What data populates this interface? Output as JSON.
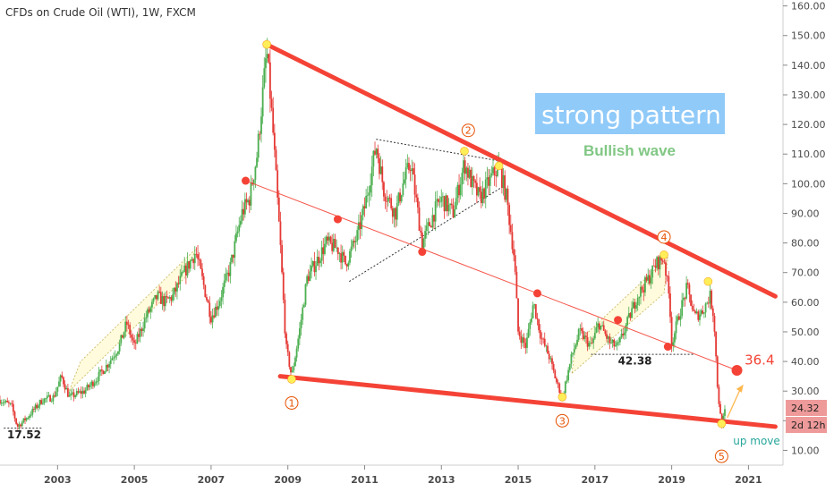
{
  "chart_data": {
    "type": "line",
    "title": "CFDs on Crude Oil (WTI), 1W, FXCM",
    "y_ticks": [
      "160.00",
      "150.00",
      "140.00",
      "130.00",
      "120.00",
      "110.00",
      "100.00",
      "90.00",
      "80.00",
      "70.00",
      "60.00",
      "50.00",
      "40.00",
      "30.00",
      "20.00",
      "10.00"
    ],
    "x_ticks": [
      "2003",
      "2005",
      "2007",
      "2009",
      "2011",
      "2013",
      "2015",
      "2017",
      "2019",
      "2021"
    ],
    "ylim": [
      5,
      162
    ],
    "xlim": [
      2001.5,
      2021.9
    ],
    "grid": false,
    "price_path": [
      [
        2001.5,
        27
      ],
      [
        2001.8,
        25
      ],
      [
        2001.95,
        18
      ],
      [
        2002.2,
        21
      ],
      [
        2002.6,
        27
      ],
      [
        2002.9,
        28
      ],
      [
        2003.1,
        35
      ],
      [
        2003.3,
        28
      ],
      [
        2003.7,
        30
      ],
      [
        2004.0,
        34
      ],
      [
        2004.3,
        39
      ],
      [
        2004.6,
        45
      ],
      [
        2004.8,
        53
      ],
      [
        2005.0,
        45
      ],
      [
        2005.3,
        55
      ],
      [
        2005.6,
        62
      ],
      [
        2005.8,
        60
      ],
      [
        2006.0,
        62
      ],
      [
        2006.3,
        70
      ],
      [
        2006.6,
        77
      ],
      [
        2006.8,
        66
      ],
      [
        2007.0,
        55
      ],
      [
        2007.2,
        60
      ],
      [
        2007.5,
        72
      ],
      [
        2007.8,
        90
      ],
      [
        2008.0,
        95
      ],
      [
        2008.2,
        110
      ],
      [
        2008.45,
        145
      ],
      [
        2008.6,
        120
      ],
      [
        2008.8,
        80
      ],
      [
        2008.95,
        45
      ],
      [
        2009.1,
        35
      ],
      [
        2009.3,
        50
      ],
      [
        2009.5,
        68
      ],
      [
        2009.8,
        75
      ],
      [
        2010.0,
        80
      ],
      [
        2010.3,
        78
      ],
      [
        2010.5,
        73
      ],
      [
        2010.8,
        82
      ],
      [
        2011.0,
        92
      ],
      [
        2011.3,
        113
      ],
      [
        2011.5,
        98
      ],
      [
        2011.8,
        90
      ],
      [
        2012.0,
        100
      ],
      [
        2012.2,
        107
      ],
      [
        2012.5,
        80
      ],
      [
        2012.8,
        90
      ],
      [
        2013.0,
        95
      ],
      [
        2013.3,
        90
      ],
      [
        2013.6,
        107
      ],
      [
        2013.8,
        100
      ],
      [
        2014.0,
        95
      ],
      [
        2014.3,
        102
      ],
      [
        2014.5,
        106
      ],
      [
        2014.7,
        95
      ],
      [
        2014.9,
        75
      ],
      [
        2015.0,
        50
      ],
      [
        2015.2,
        45
      ],
      [
        2015.4,
        60
      ],
      [
        2015.6,
        48
      ],
      [
        2015.8,
        42
      ],
      [
        2016.0,
        33
      ],
      [
        2016.15,
        28
      ],
      [
        2016.4,
        42
      ],
      [
        2016.6,
        50
      ],
      [
        2016.9,
        45
      ],
      [
        2017.1,
        53
      ],
      [
        2017.4,
        46
      ],
      [
        2017.6,
        45
      ],
      [
        2017.9,
        55
      ],
      [
        2018.1,
        62
      ],
      [
        2018.4,
        68
      ],
      [
        2018.6,
        73
      ],
      [
        2018.8,
        75
      ],
      [
        2018.95,
        60
      ],
      [
        2019.0,
        46
      ],
      [
        2019.2,
        56
      ],
      [
        2019.4,
        65
      ],
      [
        2019.6,
        55
      ],
      [
        2019.8,
        57
      ],
      [
        2020.0,
        62
      ],
      [
        2020.1,
        55
      ],
      [
        2020.2,
        30
      ],
      [
        2020.3,
        18
      ],
      [
        2020.4,
        24
      ]
    ],
    "trendlines": [
      {
        "name": "upper",
        "points": [
          [
            2008.45,
            147
          ],
          [
            2021.7,
            62
          ]
        ]
      },
      {
        "name": "lower",
        "points": [
          [
            2008.8,
            35
          ],
          [
            2021.7,
            18
          ]
        ]
      },
      {
        "name": "mid",
        "points": [
          [
            2007.9,
            101
          ],
          [
            2020.7,
            37
          ]
        ]
      }
    ],
    "wave_labels": [
      {
        "label": "1",
        "x": 2009.1,
        "y": 26
      },
      {
        "label": "2",
        "x": 2013.7,
        "y": 118
      },
      {
        "label": "3",
        "x": 2016.15,
        "y": 20
      },
      {
        "label": "4",
        "x": 2018.8,
        "y": 82
      },
      {
        "label": "5",
        "x": 2020.3,
        "y": 8
      }
    ],
    "annotations": {
      "box_text": "strong pattern",
      "wave_text": "Bullish wave",
      "target_value": "36.4",
      "level_low": "17.52",
      "level_mid": "42.38",
      "up_move": "up move",
      "price_now": "24.32",
      "time_left": "2d 12h"
    },
    "colors": {
      "trend": "#f44336",
      "up_candle": "#4caf50",
      "down_candle": "#e53935",
      "box_bg": "#90caf9",
      "wave_text": "#81c784",
      "marker_yellow": "#ffee58",
      "price_tag": "#ef9a9a",
      "target_arrow": "#ffb74d",
      "up_move": "#26a69a"
    }
  }
}
